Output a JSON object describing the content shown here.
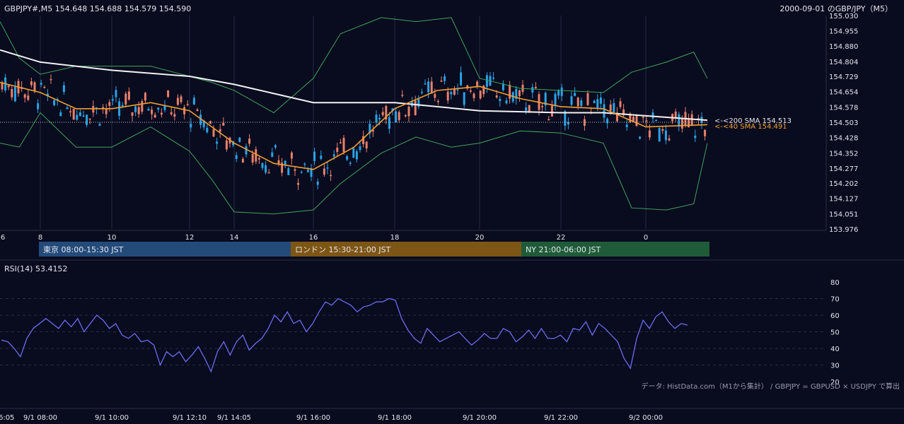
{
  "header": {
    "symbol_info": "GBPJPY#,M5 154.648 154.688 154.579 154.590",
    "title": "2000-09-01 のGBP/JPY（M5）"
  },
  "sessions": [
    {
      "label": "東京 08:00-15:30 JST",
      "color": "#234b7a"
    },
    {
      "label": "ロンドン 15:30-21:00 JST",
      "color": "#7d5514"
    },
    {
      "label": "NY 21:00-06:00 JST",
      "color": "#1f5b39"
    }
  ],
  "indicators": {
    "sma200_label": "<-<200 SMA 154.513",
    "sma40_label": "<-<40 SMA 154.491",
    "rsi_label": "RSI(14) 53.4152"
  },
  "footer": {
    "source": "データ: HistData.com（M1から集計） / GBPJPY = GBPUSD × USDJPY で算出"
  },
  "colors": {
    "up": "#29a3e6",
    "down": "#e8806a",
    "sma200": "#f2f2f2",
    "sma40": "#f0a030",
    "bollinger": "#3fa55a",
    "rsi": "#6a6df0"
  },
  "chart_data": [
    {
      "type": "candlestick",
      "y_ticks": [
        "155.030",
        "154.955",
        "154.880",
        "154.804",
        "154.729",
        "154.654",
        "154.578",
        "154.503",
        "154.428",
        "154.352",
        "154.277",
        "154.202",
        "154.127",
        "154.051",
        "153.976"
      ],
      "ylim": [
        153.976,
        155.03
      ],
      "x_ticks": [
        "6",
        "8",
        "10",
        "12",
        "14",
        "16",
        "18",
        "20",
        "22",
        "0"
      ],
      "dotted_level": 154.503,
      "sma200": [
        {
          "x": "06:05",
          "y": 154.86
        },
        {
          "x": "08:00",
          "y": 154.8
        },
        {
          "x": "10:00",
          "y": 154.76
        },
        {
          "x": "12:00",
          "y": 154.73
        },
        {
          "x": "14:00",
          "y": 154.69
        },
        {
          "x": "16:00",
          "y": 154.6
        },
        {
          "x": "18:00",
          "y": 154.6
        },
        {
          "x": "20:00",
          "y": 154.56
        },
        {
          "x": "22:00",
          "y": 154.55
        },
        {
          "x": "23:00",
          "y": 154.55
        },
        {
          "x": "01:30",
          "y": 154.513
        }
      ],
      "sma40": [
        {
          "x": "06:05",
          "y": 154.7
        },
        {
          "x": "08:00",
          "y": 154.65
        },
        {
          "x": "09:00",
          "y": 154.57
        },
        {
          "x": "10:00",
          "y": 154.57
        },
        {
          "x": "11:00",
          "y": 154.6
        },
        {
          "x": "12:00",
          "y": 154.56
        },
        {
          "x": "13:00",
          "y": 154.48
        },
        {
          "x": "14:00",
          "y": 154.4
        },
        {
          "x": "15:00",
          "y": 154.3
        },
        {
          "x": "16:00",
          "y": 154.27
        },
        {
          "x": "17:00",
          "y": 154.38
        },
        {
          "x": "18:00",
          "y": 154.57
        },
        {
          "x": "19:00",
          "y": 154.66
        },
        {
          "x": "20:00",
          "y": 154.68
        },
        {
          "x": "21:00",
          "y": 154.62
        },
        {
          "x": "22:00",
          "y": 154.58
        },
        {
          "x": "23:00",
          "y": 154.57
        },
        {
          "x": "00:00",
          "y": 154.48
        },
        {
          "x": "01:30",
          "y": 154.491
        }
      ],
      "bollinger_upper": [
        {
          "x": "06:05",
          "y": 155.0
        },
        {
          "x": "07:00",
          "y": 154.82
        },
        {
          "x": "08:00",
          "y": 154.74
        },
        {
          "x": "09:00",
          "y": 154.78
        },
        {
          "x": "10:00",
          "y": 154.78
        },
        {
          "x": "11:00",
          "y": 154.78
        },
        {
          "x": "12:00",
          "y": 154.73
        },
        {
          "x": "13:00",
          "y": 154.7
        },
        {
          "x": "14:00",
          "y": 154.66
        },
        {
          "x": "15:00",
          "y": 154.55
        },
        {
          "x": "16:00",
          "y": 154.72
        },
        {
          "x": "16:40",
          "y": 154.94
        },
        {
          "x": "17:40",
          "y": 155.02
        },
        {
          "x": "18:30",
          "y": 155.0
        },
        {
          "x": "19:20",
          "y": 155.02
        },
        {
          "x": "20:00",
          "y": 154.72
        },
        {
          "x": "21:00",
          "y": 154.67
        },
        {
          "x": "22:00",
          "y": 154.66
        },
        {
          "x": "23:00",
          "y": 154.65
        },
        {
          "x": "23:40",
          "y": 154.75
        },
        {
          "x": "00:30",
          "y": 154.8
        },
        {
          "x": "01:10",
          "y": 154.85
        },
        {
          "x": "01:30",
          "y": 154.72
        }
      ],
      "bollinger_lower": [
        {
          "x": "06:05",
          "y": 154.4
        },
        {
          "x": "07:00",
          "y": 154.38
        },
        {
          "x": "08:00",
          "y": 154.55
        },
        {
          "x": "09:00",
          "y": 154.38
        },
        {
          "x": "10:00",
          "y": 154.38
        },
        {
          "x": "11:00",
          "y": 154.48
        },
        {
          "x": "12:00",
          "y": 154.36
        },
        {
          "x": "13:00",
          "y": 154.22
        },
        {
          "x": "14:00",
          "y": 154.06
        },
        {
          "x": "15:00",
          "y": 154.05
        },
        {
          "x": "16:00",
          "y": 154.07
        },
        {
          "x": "16:40",
          "y": 154.2
        },
        {
          "x": "17:40",
          "y": 154.35
        },
        {
          "x": "18:30",
          "y": 154.43
        },
        {
          "x": "19:20",
          "y": 154.38
        },
        {
          "x": "20:00",
          "y": 154.4
        },
        {
          "x": "21:00",
          "y": 154.46
        },
        {
          "x": "22:00",
          "y": 154.45
        },
        {
          "x": "23:00",
          "y": 154.4
        },
        {
          "x": "23:40",
          "y": 154.08
        },
        {
          "x": "00:30",
          "y": 154.07
        },
        {
          "x": "01:10",
          "y": 154.1
        },
        {
          "x": "01:30",
          "y": 154.4
        }
      ]
    },
    {
      "type": "line",
      "title": "RSI(14) 53.4152",
      "y_ticks": [
        "80",
        "70",
        "60",
        "50",
        "40",
        "30",
        "20"
      ],
      "ylim": [
        20,
        80
      ],
      "x_ticks": [
        "06:05",
        "9/1 08:00",
        "9/1 10:00",
        "9/1 12:10",
        "9/1 14:05",
        "9/1 16:00",
        "9/1 18:00",
        "9/1 20:00",
        "9/1 22:00",
        "9/2 00:00"
      ],
      "series": [
        {
          "values": [
            45,
            44,
            40,
            35,
            46,
            52,
            55,
            58,
            55,
            52,
            57,
            53,
            58,
            50,
            55,
            60,
            57,
            52,
            55,
            48,
            46,
            49,
            44,
            45,
            42,
            30,
            38,
            35,
            38,
            32,
            36,
            41,
            34,
            26,
            38,
            44,
            36,
            44,
            48,
            39,
            43,
            46,
            52,
            60,
            56,
            62,
            55,
            57,
            50,
            55,
            62,
            68,
            66,
            70,
            68,
            66,
            62,
            65,
            66,
            68,
            68,
            70,
            69,
            58,
            51,
            46,
            43,
            52,
            48,
            44,
            46,
            48,
            50,
            46,
            42,
            45,
            49,
            46,
            46,
            52,
            50,
            44,
            47,
            51,
            46,
            52,
            46,
            46,
            48,
            44,
            52,
            51,
            56,
            48,
            55,
            52,
            48,
            44,
            34,
            28,
            46,
            57,
            52,
            59,
            62,
            56,
            52,
            55,
            54
          ]
        }
      ]
    }
  ]
}
